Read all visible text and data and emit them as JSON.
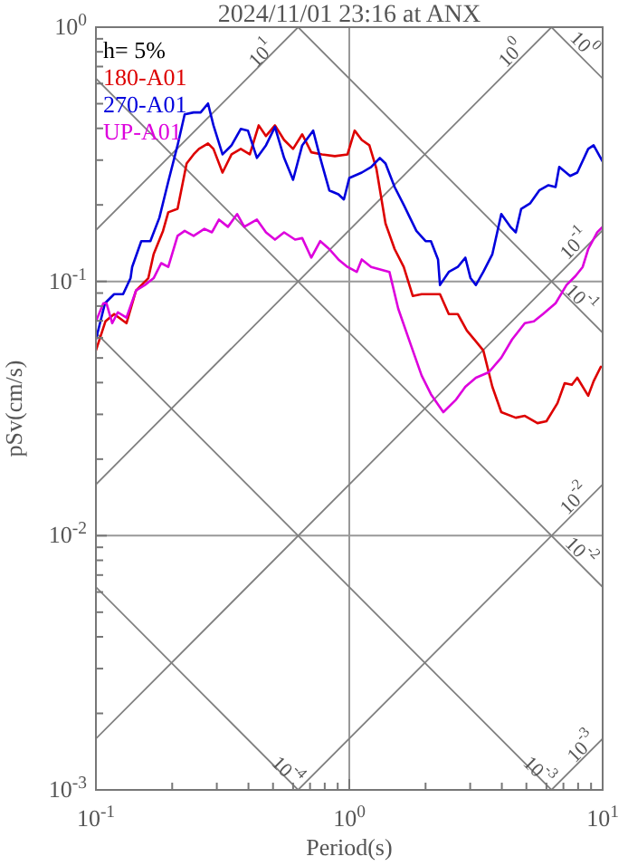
{
  "chart_data": {
    "type": "line",
    "title": "2024/11/01 23:16 at ANX",
    "xlabel": "Period(s)",
    "ylabel": "pSv(cm/s)",
    "log": "xy",
    "grid": true,
    "legend": "top left",
    "xlim": [
      0.1,
      10
    ],
    "ylim": [
      0.001,
      1
    ],
    "xticks": [
      {
        "value": 0.1,
        "label": "10$^{-1}$"
      },
      {
        "value": 0.2,
        "label": null
      },
      {
        "value": 0.3,
        "label": null
      },
      {
        "value": 0.4,
        "label": null
      },
      {
        "value": 0.5,
        "label": null
      },
      {
        "value": 0.6,
        "label": null
      },
      {
        "value": 0.7,
        "label": null
      },
      {
        "value": 0.8,
        "label": null
      },
      {
        "value": 0.9,
        "label": null
      },
      {
        "value": 1,
        "label": "10$^{0}$"
      },
      {
        "value": 2,
        "label": null
      },
      {
        "value": 3,
        "label": null
      },
      {
        "value": 4,
        "label": null
      },
      {
        "value": 5,
        "label": null
      },
      {
        "value": 6,
        "label": null
      },
      {
        "value": 7,
        "label": null
      },
      {
        "value": 8,
        "label": null
      },
      {
        "value": 9,
        "label": null
      },
      {
        "value": 10,
        "label": "10$^{1}$"
      }
    ],
    "yticks": [
      {
        "value": 0.001,
        "label": "10$^{-3}$"
      },
      {
        "value": 0.002,
        "label": null
      },
      {
        "value": 0.003,
        "label": null
      },
      {
        "value": 0.004,
        "label": null
      },
      {
        "value": 0.005,
        "label": null
      },
      {
        "value": 0.006,
        "label": null
      },
      {
        "value": 0.007,
        "label": null
      },
      {
        "value": 0.008,
        "label": null
      },
      {
        "value": 0.009,
        "label": null
      },
      {
        "value": 0.01,
        "label": "10$^{-2}$"
      },
      {
        "value": 0.02,
        "label": null
      },
      {
        "value": 0.03,
        "label": null
      },
      {
        "value": 0.04,
        "label": null
      },
      {
        "value": 0.05,
        "label": null
      },
      {
        "value": 0.06,
        "label": null
      },
      {
        "value": 0.07,
        "label": null
      },
      {
        "value": 0.08,
        "label": null
      },
      {
        "value": 0.09,
        "label": null
      },
      {
        "value": 0.1,
        "label": "10$^{-1}$"
      },
      {
        "value": 0.2,
        "label": null
      },
      {
        "value": 0.3,
        "label": null
      },
      {
        "value": 0.4,
        "label": null
      },
      {
        "value": 0.5,
        "label": null
      },
      {
        "value": 0.6,
        "label": null
      },
      {
        "value": 0.7,
        "label": null
      },
      {
        "value": 0.8,
        "label": null
      },
      {
        "value": 0.9,
        "label": null
      },
      {
        "value": 1,
        "label": "10$^{0}$"
      }
    ],
    "series": [
      {
        "type": "line",
        "color": "#808080",
        "x": [
          6.28,
          10
        ],
        "values": [
          1,
          0.628
        ]
      },
      {
        "type": "line",
        "color": "#808080",
        "x": [
          0.628,
          10
        ],
        "values": [
          1,
          0.0628
        ]
      },
      {
        "type": "line",
        "color": "#808080",
        "x": [
          0.1,
          10
        ],
        "values": [
          0.628,
          0.00628
        ]
      },
      {
        "type": "line",
        "color": "#808080",
        "x": [
          0.1,
          6.28
        ],
        "values": [
          0.0628,
          0.001
        ]
      },
      {
        "type": "line",
        "color": "#808080",
        "x": [
          0.1,
          0.628
        ],
        "values": [
          0.00628,
          0.001
        ]
      },
      {
        "type": "line",
        "color": "#808080",
        "x": [
          0.1,
          0.628
        ],
        "values": [
          0.159,
          1
        ]
      },
      {
        "type": "line",
        "color": "#808080",
        "x": [
          0.1,
          6.28
        ],
        "values": [
          0.0159,
          1
        ]
      },
      {
        "type": "line",
        "color": "#808080",
        "x": [
          0.1,
          10
        ],
        "values": [
          0.00159,
          0.159
        ]
      },
      {
        "type": "line",
        "color": "#808080",
        "x": [
          0.628,
          10
        ],
        "values": [
          0.001,
          0.0159
        ]
      },
      {
        "type": "line",
        "color": "#808080",
        "x": [
          6.28,
          10
        ],
        "values": [
          0.001,
          0.00159
        ]
      },
      {
        "type": "line",
        "name": "180-A01",
        "color": "#dd0000",
        "x": [
          0.1,
          0.109,
          0.118,
          0.132,
          0.144,
          0.161,
          0.169,
          0.184,
          0.193,
          0.21,
          0.228,
          0.243,
          0.255,
          0.277,
          0.291,
          0.316,
          0.343,
          0.373,
          0.405,
          0.439,
          0.469,
          0.509,
          0.553,
          0.6,
          0.652,
          0.708,
          0.781,
          0.877,
          0.984,
          1.05,
          1.12,
          1.2,
          1.28,
          1.39,
          1.51,
          1.64,
          1.78,
          1.93,
          2.1,
          2.28,
          2.47,
          2.68,
          2.91,
          3.16,
          3.38,
          3.67,
          3.98,
          4.54,
          4.93,
          5.53,
          6.0,
          6.63,
          7.08,
          7.56,
          7.94,
          8.77,
          9.21,
          9.84
        ],
        "values": [
          0.0535,
          0.0696,
          0.0744,
          0.0685,
          0.0921,
          0.103,
          0.128,
          0.158,
          0.187,
          0.193,
          0.291,
          0.316,
          0.332,
          0.349,
          0.332,
          0.268,
          0.316,
          0.332,
          0.316,
          0.411,
          0.373,
          0.411,
          0.36,
          0.332,
          0.379,
          0.322,
          0.316,
          0.311,
          0.316,
          0.392,
          0.36,
          0.343,
          0.277,
          0.169,
          0.134,
          0.114,
          0.0877,
          0.0891,
          0.0891,
          0.0891,
          0.0744,
          0.0744,
          0.0641,
          0.0581,
          0.0535,
          0.0385,
          0.0306,
          0.0291,
          0.0296,
          0.0277,
          0.0282,
          0.0332,
          0.0398,
          0.0392,
          0.0418,
          0.0355,
          0.0405,
          0.0462
        ]
      },
      {
        "type": "line",
        "name": "270-A01",
        "color": "#0000dd",
        "x": [
          0.1,
          0.1086,
          0.118,
          0.128,
          0.137,
          0.139,
          0.151,
          0.164,
          0.178,
          0.193,
          0.21,
          0.224,
          0.243,
          0.259,
          0.277,
          0.291,
          0.316,
          0.343,
          0.373,
          0.398,
          0.432,
          0.469,
          0.509,
          0.553,
          0.6,
          0.652,
          0.72,
          0.768,
          0.834,
          0.906,
          0.952,
          1.0,
          1.12,
          1.22,
          1.32,
          1.39,
          1.51,
          1.64,
          1.84,
          2.0,
          2.1,
          2.24,
          2.28,
          2.47,
          2.68,
          2.87,
          3.01,
          3.16,
          3.38,
          3.67,
          3.98,
          4.32,
          4.54,
          4.77,
          5.18,
          5.62,
          6.11,
          6.52,
          6.74,
          7.44,
          7.94,
          8.77,
          9.21,
          10
        ],
        "values": [
          0.0591,
          0.0821,
          0.0891,
          0.0891,
          0.103,
          0.114,
          0.144,
          0.144,
          0.178,
          0.247,
          0.343,
          0.454,
          0.462,
          0.462,
          0.501,
          0.411,
          0.316,
          0.343,
          0.398,
          0.392,
          0.306,
          0.343,
          0.405,
          0.306,
          0.251,
          0.343,
          0.392,
          0.306,
          0.228,
          0.22,
          0.21,
          0.255,
          0.268,
          0.282,
          0.306,
          0.291,
          0.235,
          0.2,
          0.158,
          0.144,
          0.144,
          0.122,
          0.0968,
          0.109,
          0.114,
          0.124,
          0.103,
          0.0968,
          0.109,
          0.128,
          0.184,
          0.164,
          0.156,
          0.193,
          0.203,
          0.228,
          0.239,
          0.235,
          0.282,
          0.26,
          0.268,
          0.332,
          0.343,
          0.296
        ]
      },
      {
        "type": "line",
        "name": "UP-A01",
        "color": "#dd00dd",
        "x": [
          0.1,
          0.107,
          0.11,
          0.116,
          0.122,
          0.132,
          0.144,
          0.156,
          0.169,
          0.181,
          0.193,
          0.21,
          0.224,
          0.243,
          0.268,
          0.287,
          0.306,
          0.332,
          0.361,
          0.385,
          0.432,
          0.469,
          0.509,
          0.553,
          0.611,
          0.652,
          0.708,
          0.768,
          0.834,
          0.906,
          0.984,
          1.07,
          1.12,
          1.22,
          1.44,
          1.56,
          1.75,
          1.93,
          2.1,
          2.35,
          2.64,
          2.87,
          3.16,
          3.55,
          3.98,
          4.39,
          4.93,
          5.35,
          5.81,
          6.52,
          7.2,
          7.81,
          8.34,
          8.77,
          9.52,
          10
        ],
        "values": [
          0.0696,
          0.0821,
          0.0821,
          0.0685,
          0.0756,
          0.072,
          0.0921,
          0.0968,
          0.103,
          0.118,
          0.114,
          0.151,
          0.158,
          0.151,
          0.161,
          0.156,
          0.175,
          0.164,
          0.184,
          0.164,
          0.175,
          0.156,
          0.146,
          0.156,
          0.146,
          0.148,
          0.124,
          0.144,
          0.134,
          0.122,
          0.114,
          0.109,
          0.122,
          0.114,
          0.109,
          0.0781,
          0.0562,
          0.0426,
          0.036,
          0.0306,
          0.0343,
          0.0385,
          0.0418,
          0.0439,
          0.0501,
          0.0591,
          0.0685,
          0.0696,
          0.0744,
          0.0821,
          0.0968,
          0.105,
          0.114,
          0.134,
          0.156,
          0.164
        ]
      }
    ],
    "annotations": [
      "h= 5%",
      {
        "text": "10$^{1}$",
        "x": 0.454,
        "y": 0.78
      },
      {
        "text": "10$^{0}$",
        "x": 4.39,
        "y": 0.78
      },
      {
        "text": "10$^{0}$",
        "x": 8.34,
        "y": 0.85
      },
      {
        "text": "10$^{-1}$",
        "x": 7.81,
        "y": 0.139
      },
      {
        "text": "10$^{-1}$",
        "x": 8.1,
        "y": 0.085
      },
      {
        "text": "10$^{-2}$",
        "x": 7.81,
        "y": 0.0138
      },
      {
        "text": "10$^{-2}$",
        "x": 8.1,
        "y": 0.0086
      },
      {
        "text": "10$^{-4}$",
        "x": 0.562,
        "y": 0.00118
      },
      {
        "text": "10$^{-3}$",
        "x": 5.53,
        "y": 0.00118
      },
      {
        "text": "10$^{-3}$",
        "x": 8.34,
        "y": 0.00146
      }
    ]
  }
}
